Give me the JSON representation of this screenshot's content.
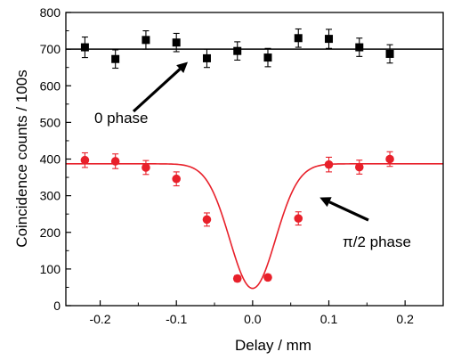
{
  "chart_data": {
    "type": "scatter",
    "xlabel": "Delay / mm",
    "ylabel": "Coincidence counts / 100s",
    "xlim": [
      -0.245,
      0.25
    ],
    "ylim": [
      0,
      800
    ],
    "grid": false,
    "x_ticks": [
      "-0.2",
      "-0.1",
      "0.0",
      "0.1",
      "0.2"
    ],
    "x_tick_values": [
      -0.2,
      -0.1,
      0.0,
      0.1,
      0.2
    ],
    "y_ticks": [
      "0",
      "100",
      "200",
      "300",
      "400",
      "500",
      "600",
      "700",
      "800"
    ],
    "y_tick_values": [
      0,
      100,
      200,
      300,
      400,
      500,
      600,
      700,
      800
    ],
    "series": [
      {
        "marker": "square",
        "color": "#000000",
        "x": [
          -0.22,
          -0.18,
          -0.14,
          -0.1,
          -0.06,
          -0.02,
          0.02,
          0.06,
          0.1,
          0.14,
          0.18
        ],
        "y": [
          705,
          673,
          725,
          718,
          675,
          695,
          677,
          730,
          728,
          705,
          687
        ],
        "err": [
          28,
          25,
          25,
          25,
          25,
          25,
          25,
          25,
          26,
          25,
          25
        ]
      },
      {
        "marker": "circle",
        "color": "#e8202a",
        "x": [
          -0.22,
          -0.18,
          -0.14,
          -0.1,
          -0.06,
          -0.02,
          0.02,
          0.06,
          0.1,
          0.14,
          0.18
        ],
        "y": [
          397,
          394,
          377,
          346,
          235,
          74,
          77,
          238,
          385,
          378,
          400
        ],
        "err": [
          20,
          20,
          19,
          19,
          18,
          8,
          8,
          18,
          20,
          19,
          20
        ]
      }
    ],
    "reference_line": {
      "y": 700,
      "color": "#000000"
    },
    "fit_curve": {
      "type": "gaussian-dip",
      "color": "#e8202a",
      "baseline": 387,
      "depth": 340,
      "center": 0.0,
      "sigma": 0.03
    },
    "annotations": [
      {
        "text": "0 phase",
        "arrow_to": [
          -0.085,
          665
        ]
      },
      {
        "text": "π/2 phase",
        "arrow_to": [
          0.088,
          295
        ]
      }
    ]
  }
}
